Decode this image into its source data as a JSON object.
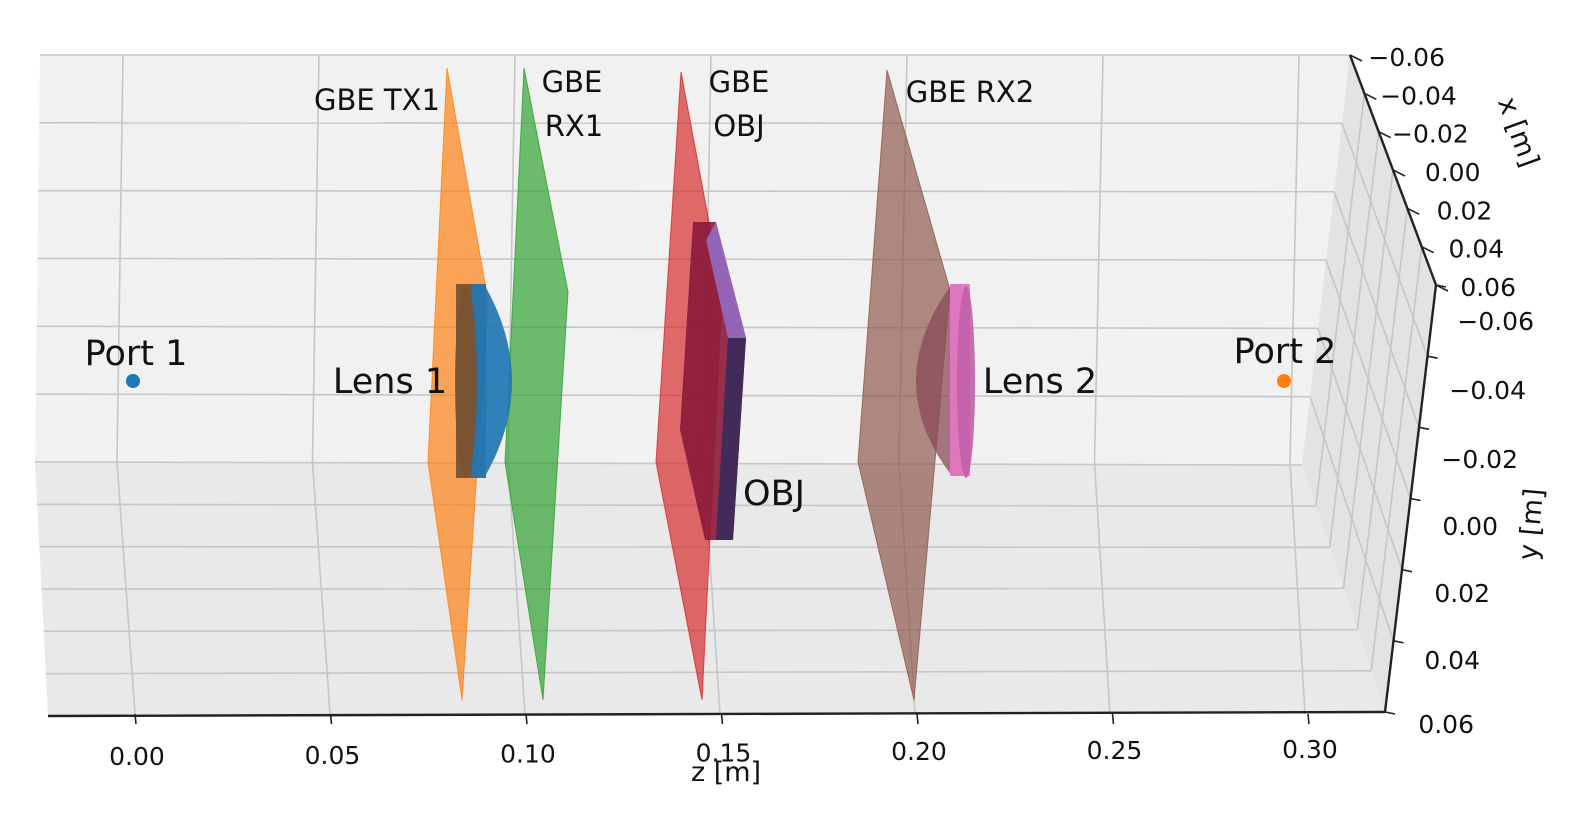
{
  "chart_data": {
    "type": "3d-scene",
    "title": "",
    "axes": {
      "z": {
        "label": "z [m]",
        "ticks": [
          "0.00",
          "0.05",
          "0.10",
          "0.15",
          "0.20",
          "0.25",
          "0.30"
        ]
      },
      "x": {
        "label": "x [m]",
        "ticks": [
          "−0.06",
          "−0.04",
          "−0.02",
          "0.00",
          "0.02",
          "0.04",
          "0.06"
        ]
      },
      "y": {
        "label": "y [m]",
        "ticks": [
          "−0.06",
          "−0.04",
          "−0.02",
          "0.00",
          "0.02",
          "0.04",
          "0.06"
        ]
      }
    },
    "ports": [
      {
        "label": "Port 1",
        "z": 0.0,
        "color": "#1f77b4"
      },
      {
        "label": "Port 2",
        "z": 0.295,
        "color": "#ff7f0e"
      }
    ],
    "planes": [
      {
        "label": "GBE TX1",
        "z": 0.083,
        "color": "#ff7f0e"
      },
      {
        "label": "GBE RX1",
        "z": 0.105,
        "color": "#2ca02c"
      },
      {
        "label": "GBE OBJ",
        "z": 0.145,
        "color": "#d62728"
      },
      {
        "label": "GBE RX2",
        "z": 0.2,
        "color": "#8c564b"
      }
    ],
    "objects": [
      {
        "label": "Lens 1",
        "z": 0.088,
        "color": "#1f77b4"
      },
      {
        "label": "OBJ",
        "z": 0.15,
        "color": "#9467bd"
      },
      {
        "label": "Lens 2",
        "z": 0.21,
        "color": "#e377c2"
      }
    ],
    "grid": true
  }
}
